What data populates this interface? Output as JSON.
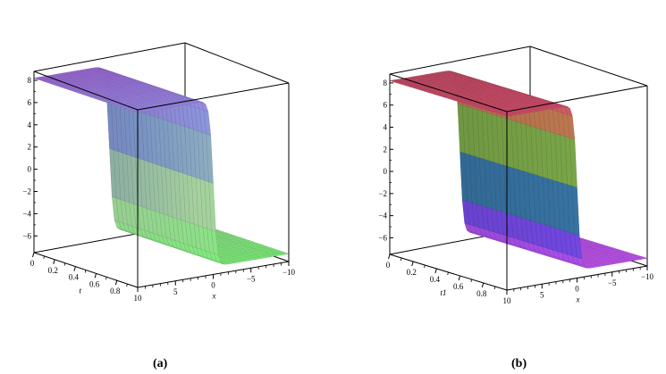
{
  "chart_data": [
    {
      "type": "surface",
      "panel_label": "(a)",
      "title": "",
      "axis_labels": {
        "t": "t",
        "x": "x",
        "z": ""
      },
      "z_ticks": [
        -6,
        -4,
        -2,
        0,
        2,
        4,
        6,
        8
      ],
      "t_ticks": [
        0,
        0.2,
        0.4,
        0.6,
        0.8
      ],
      "t_tick_labels": [
        "0",
        "0.2",
        "0.4",
        "0.6",
        "0.8"
      ],
      "x_ticks": [
        10,
        5,
        0,
        -5,
        -10
      ],
      "x_tick_labels": [
        "10",
        "5",
        "0",
        "−5",
        "−10"
      ],
      "x_range": [
        -10,
        10
      ],
      "t_range": [
        0,
        1
      ],
      "z_range": [
        -7.5,
        8.8
      ],
      "surface": {
        "form": "kink",
        "upper_level": 8.2,
        "lower_level": -6.8,
        "steepness": 4
      },
      "colormap": [
        "#a873e8",
        "#8ca9e6",
        "#b8e8b0",
        "#7df07a"
      ]
    },
    {
      "type": "surface",
      "panel_label": "(b)",
      "title": "",
      "axis_labels": {
        "t": "t1",
        "x": "x",
        "z": ""
      },
      "z_ticks": [
        -6,
        -4,
        -2,
        0,
        2,
        4,
        6,
        8
      ],
      "t_ticks": [
        0,
        0.2,
        0.4,
        0.6,
        0.8
      ],
      "t_tick_labels": [
        "0",
        "0.2",
        "0.4",
        "0.6",
        "0.8"
      ],
      "x_ticks": [
        10,
        5,
        0,
        -5,
        -10
      ],
      "x_tick_labels": [
        "10",
        "5",
        "0",
        "−5",
        "−10"
      ],
      "x_range": [
        -10,
        10
      ],
      "t_range": [
        0,
        1
      ],
      "z_range": [
        -7.5,
        8.8
      ],
      "surface": {
        "form": "kink",
        "upper_level": 8.2,
        "lower_level": -6.8,
        "steepness": 4
      },
      "colormap": [
        "#d4506e",
        "#b8a23c",
        "#3fcf6a",
        "#3a44e6",
        "#c054f0"
      ]
    }
  ]
}
